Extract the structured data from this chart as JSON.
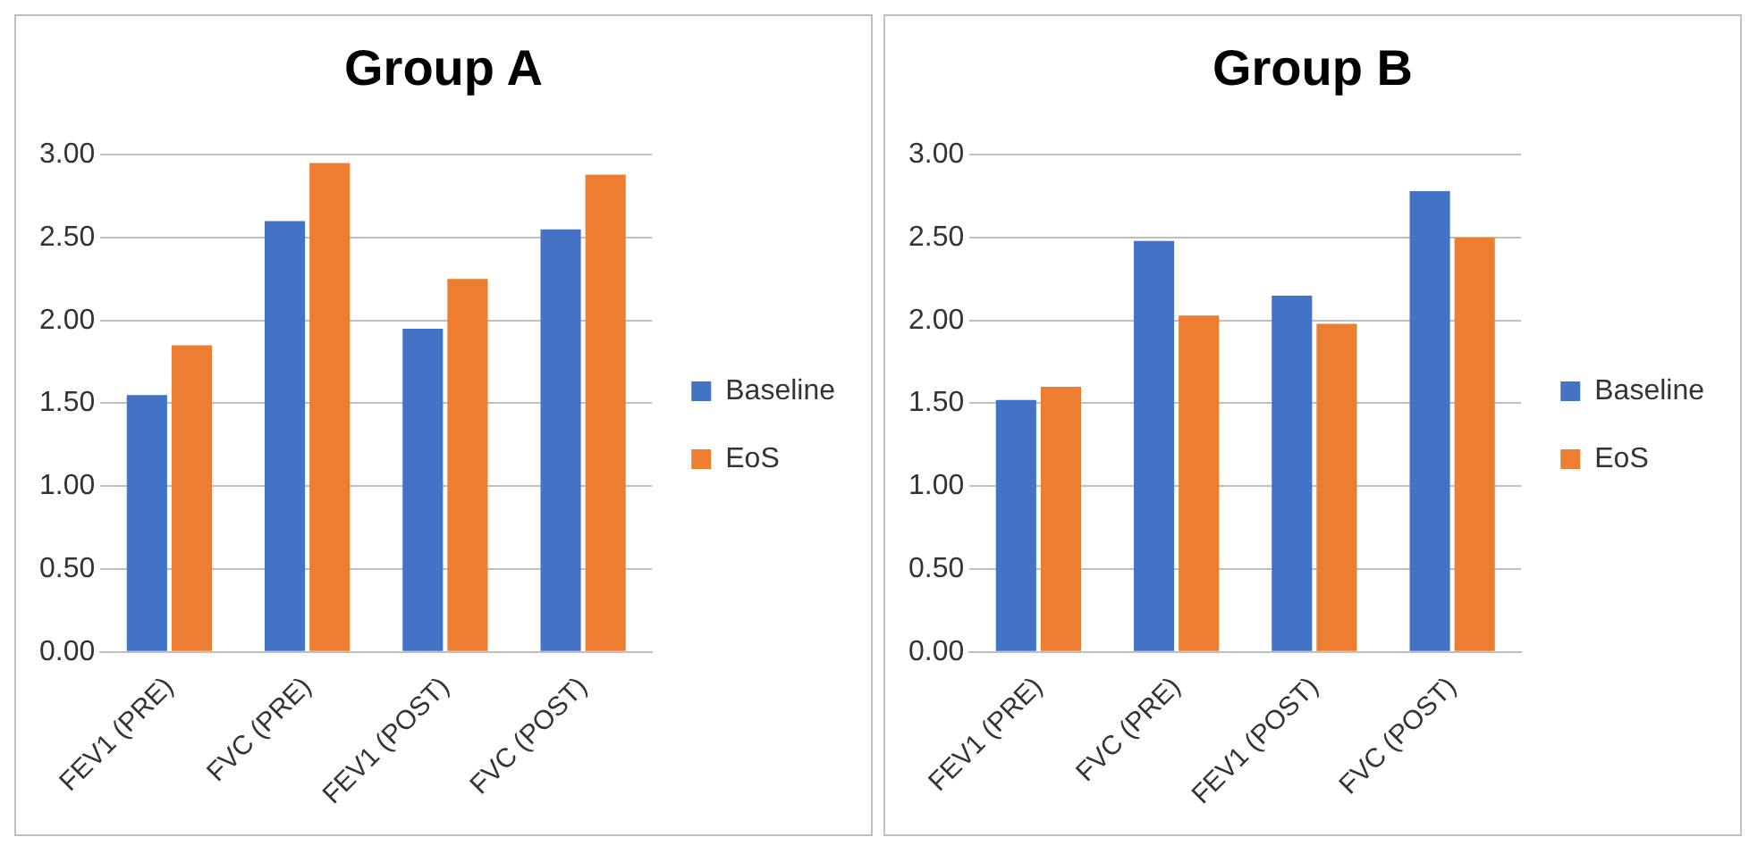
{
  "chart_data": [
    {
      "type": "bar",
      "title": "Group A",
      "categories": [
        "FEV1 (PRE)",
        "FVC (PRE)",
        "FEV1 (POST)",
        "FVC (POST)"
      ],
      "series": [
        {
          "name": "Baseline",
          "color": "#4472c4",
          "values": [
            1.55,
            2.6,
            1.95,
            2.55
          ]
        },
        {
          "name": "EoS",
          "color": "#ed7d31",
          "values": [
            1.85,
            2.95,
            2.25,
            2.88
          ]
        }
      ],
      "ylim": [
        0,
        3
      ],
      "yticks": [
        {
          "value": 0,
          "label": "0.00"
        },
        {
          "value": 0.5,
          "label": "0.50"
        },
        {
          "value": 1,
          "label": "1.00"
        },
        {
          "value": 1.5,
          "label": "1.50"
        },
        {
          "value": 2,
          "label": "2.00"
        },
        {
          "value": 2.5,
          "label": "2.50"
        },
        {
          "value": 3,
          "label": "3.00"
        }
      ],
      "grid": "y",
      "legend": "right"
    },
    {
      "type": "bar",
      "title": "Group B",
      "categories": [
        "FEV1 (PRE)",
        "FVC (PRE)",
        "FEV1 (POST)",
        "FVC (POST)"
      ],
      "series": [
        {
          "name": "Baseline",
          "color": "#4472c4",
          "values": [
            1.52,
            2.48,
            2.15,
            2.78
          ]
        },
        {
          "name": "EoS",
          "color": "#ed7d31",
          "values": [
            1.6,
            2.03,
            1.98,
            2.5
          ]
        }
      ],
      "ylim": [
        0,
        3
      ],
      "yticks": [
        {
          "value": 0,
          "label": "0.00"
        },
        {
          "value": 0.5,
          "label": "0.50"
        },
        {
          "value": 1,
          "label": "1.00"
        },
        {
          "value": 1.5,
          "label": "1.50"
        },
        {
          "value": 2,
          "label": "2.00"
        },
        {
          "value": 2.5,
          "label": "2.50"
        },
        {
          "value": 3,
          "label": "3.00"
        }
      ],
      "grid": "y",
      "legend": "right"
    }
  ]
}
